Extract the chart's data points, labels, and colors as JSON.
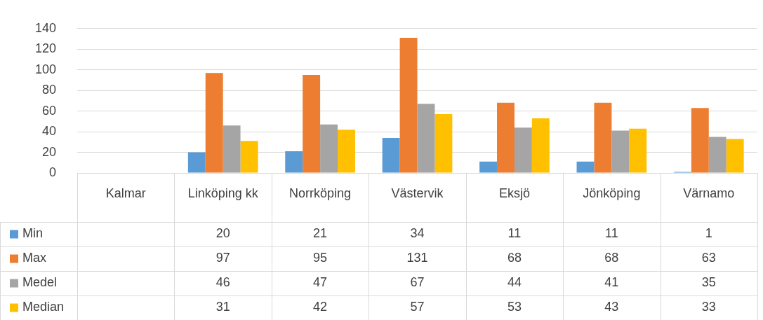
{
  "chart_data": {
    "type": "bar",
    "categories": [
      "Kalmar",
      "Linköping kk",
      "Norrköping",
      "Västervik",
      "Eksjö",
      "Jönköping",
      "Värnamo"
    ],
    "series": [
      {
        "name": "Min",
        "color": "#5b9bd5",
        "values": [
          null,
          20,
          21,
          34,
          11,
          11,
          1
        ]
      },
      {
        "name": "Max",
        "color": "#ed7d31",
        "values": [
          null,
          97,
          95,
          131,
          68,
          68,
          63
        ]
      },
      {
        "name": "Medel",
        "color": "#a5a5a5",
        "values": [
          null,
          46,
          47,
          67,
          44,
          41,
          35
        ]
      },
      {
        "name": "Median",
        "color": "#ffc000",
        "values": [
          null,
          31,
          42,
          57,
          53,
          43,
          33
        ]
      }
    ],
    "ylim": [
      0,
      140
    ],
    "yticks": [
      0,
      20,
      40,
      60,
      80,
      100,
      120,
      140
    ],
    "grid": "y",
    "legend": "bottom",
    "data_labels": true
  }
}
